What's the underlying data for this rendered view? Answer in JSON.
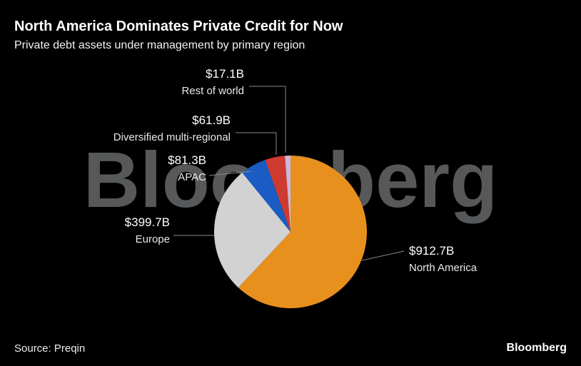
{
  "header": {
    "title": "North America Dominates Private Credit for Now",
    "subtitle": "Private debt assets under management by primary region"
  },
  "watermark": "Bloomberg",
  "footer": {
    "source": "Source: Preqin",
    "brand": "Bloomberg"
  },
  "chart_data": {
    "type": "pie",
    "title": "North America Dominates Private Credit for Now",
    "subtitle": "Private debt assets under management by primary region",
    "unit": "USD billions",
    "direction": "clockwise",
    "start_angle_deg": 0,
    "legend_position": "callouts",
    "slices": [
      {
        "label": "North America",
        "value": 912.7,
        "value_label": "$912.7B",
        "color": "#E8901E"
      },
      {
        "label": "Europe",
        "value": 399.7,
        "value_label": "$399.7B",
        "color": "#D2D2D2"
      },
      {
        "label": "APAC",
        "value": 81.3,
        "value_label": "$81.3B",
        "color": "#1A5BC4"
      },
      {
        "label": "Diversified multi-regional",
        "value": 61.9,
        "value_label": "$61.9B",
        "color": "#CE3B2E"
      },
      {
        "label": "Rest of world",
        "value": 17.1,
        "value_label": "$17.1B",
        "color": "#C9B8DF"
      }
    ]
  }
}
